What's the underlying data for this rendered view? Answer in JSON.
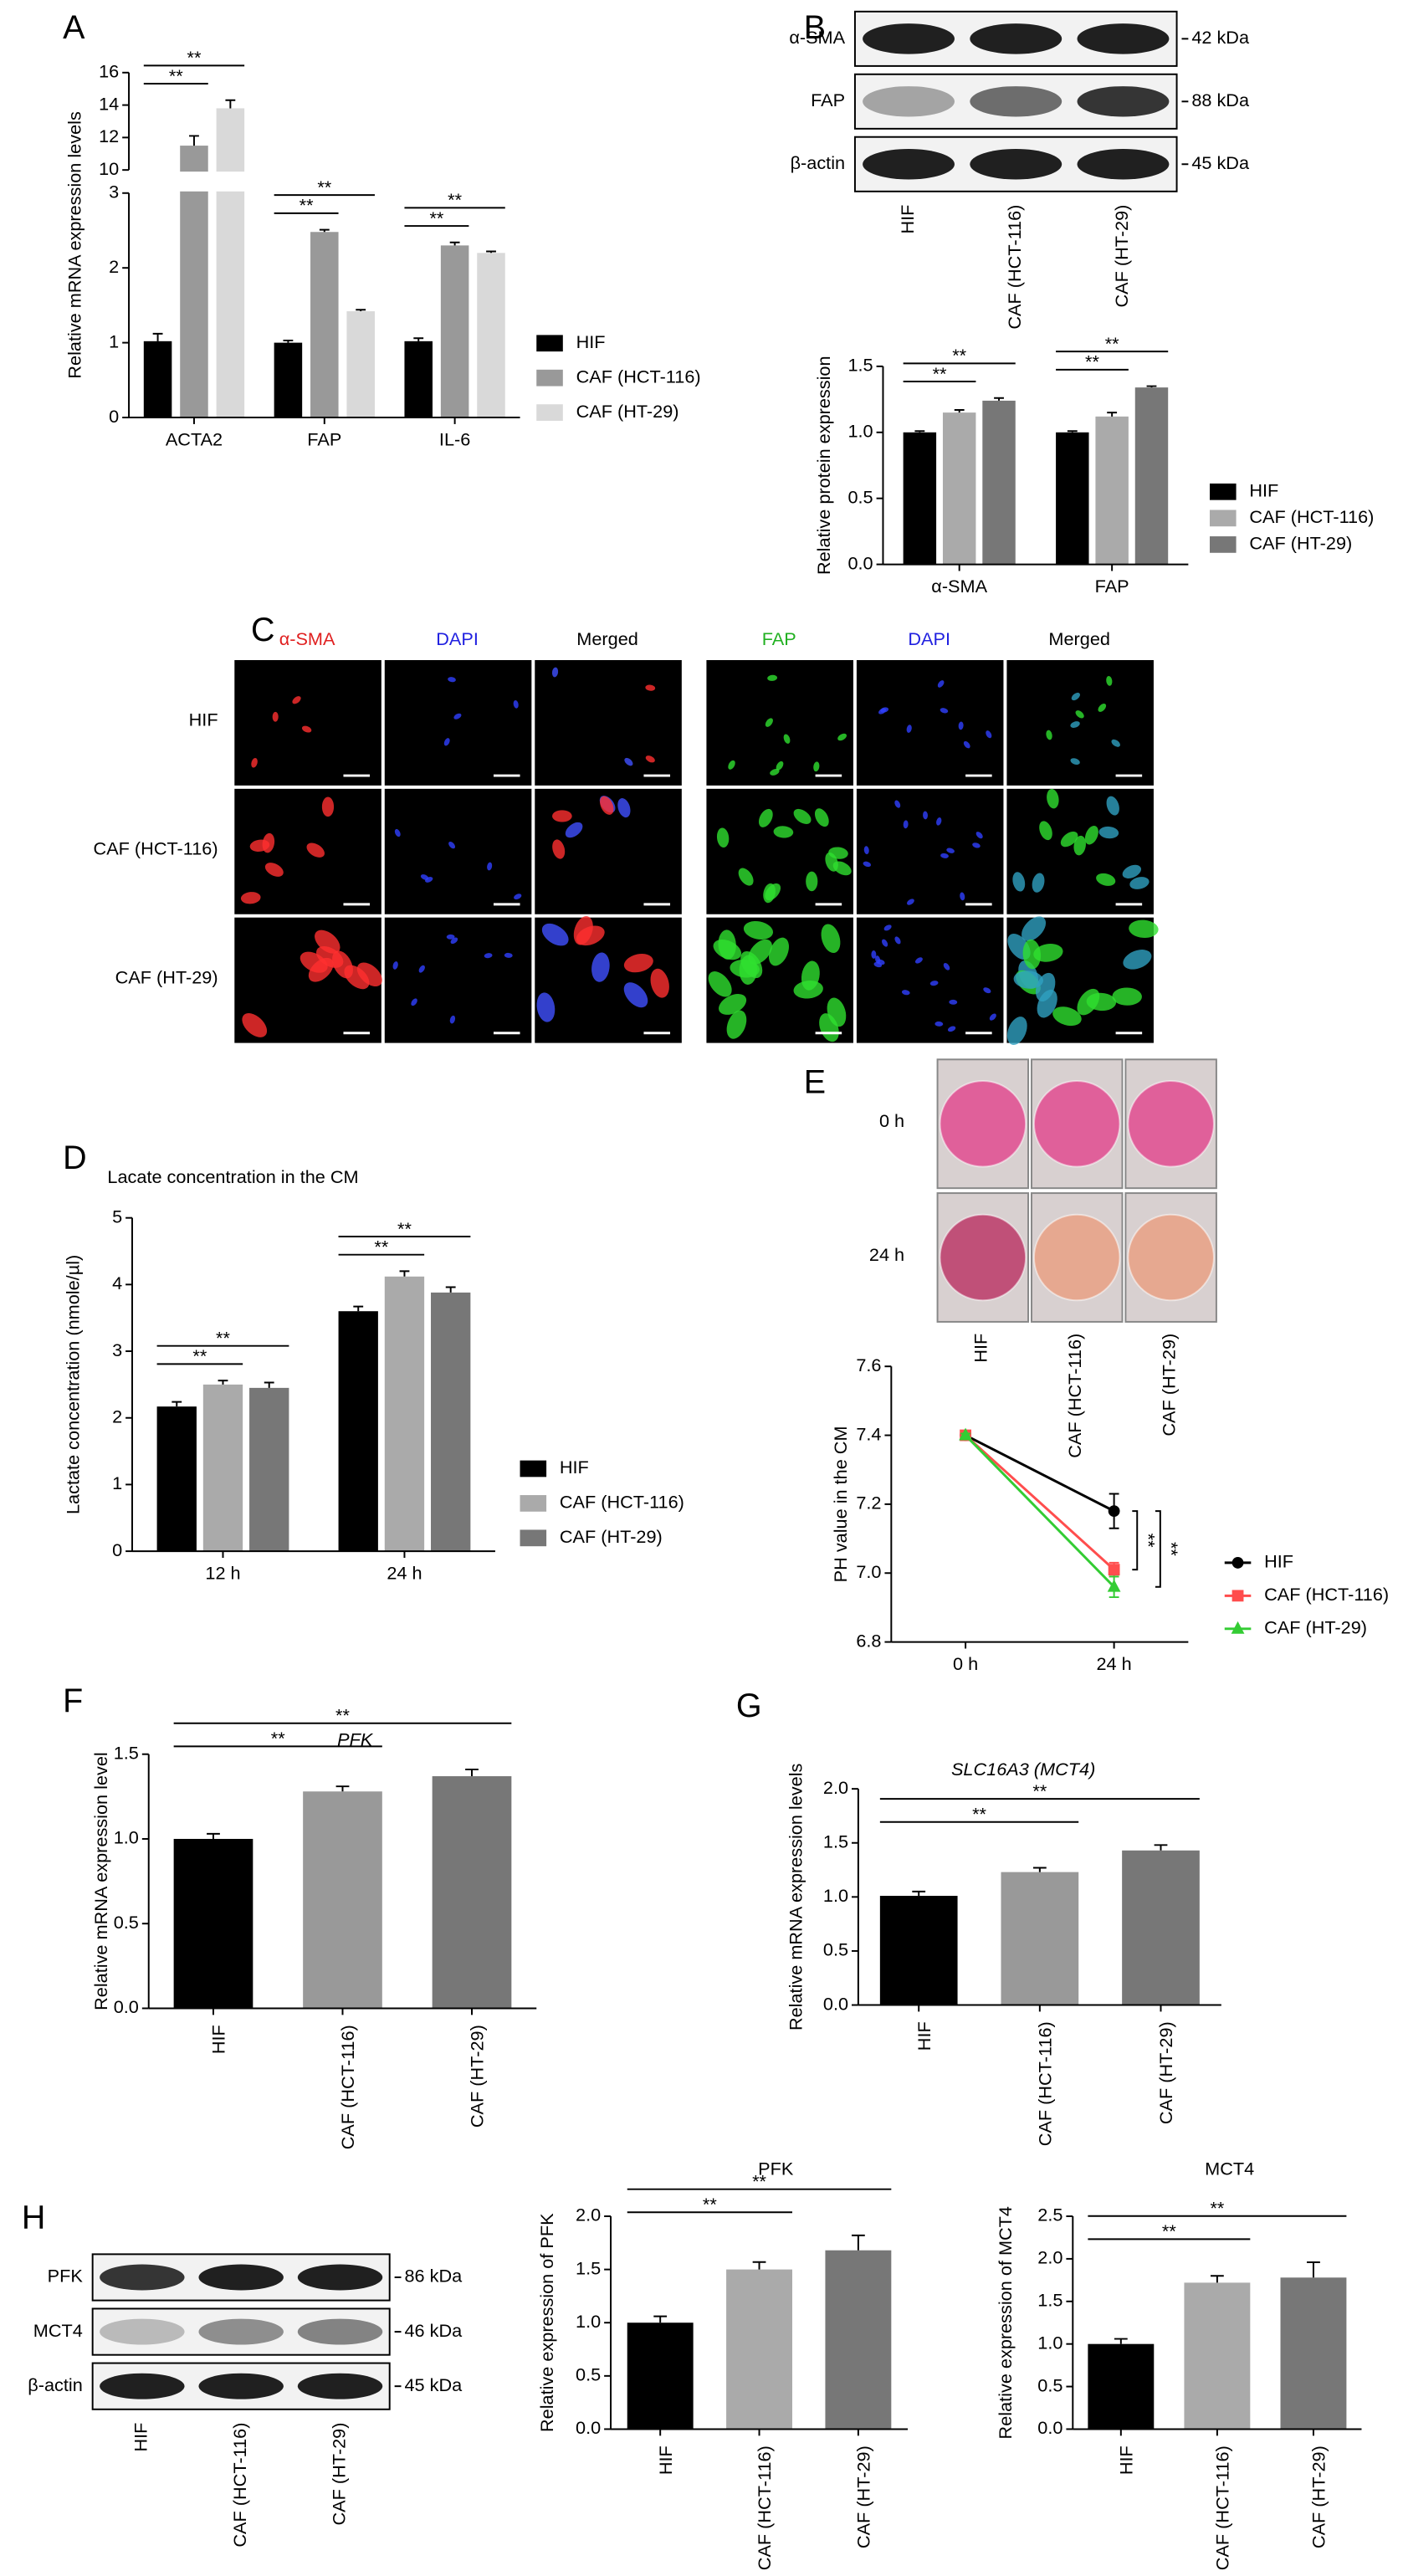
{
  "panel_letters": [
    "A",
    "B",
    "C",
    "D",
    "E",
    "F",
    "G",
    "H"
  ],
  "blot_b": {
    "rows": [
      "α-SMA",
      "FAP",
      "β-actin"
    ],
    "sizes": [
      "42 kDa",
      "88 kDa",
      "45 kDa"
    ],
    "lanes": [
      "HIF",
      "CAF (HCT-116)",
      "CAF (HT-29)"
    ]
  },
  "micro_c": {
    "left_headers": [
      "α-SMA",
      "DAPI",
      "Merged"
    ],
    "right_headers": [
      "FAP",
      "DAPI",
      "Merged"
    ],
    "rows": [
      "HIF",
      "CAF (HCT-116)",
      "CAF (HT-29)"
    ]
  },
  "plates_e": {
    "rows": [
      "0 h",
      "24 h"
    ],
    "lanes": [
      "HIF",
      "CAF (HCT-116)",
      "CAF (HT-29)"
    ]
  },
  "blot_h": {
    "rows": [
      "PFK",
      "MCT4",
      "β-actin"
    ],
    "sizes": [
      "86 kDa",
      "46 kDa",
      "45 kDa"
    ],
    "lanes": [
      "HIF",
      "CAF (HCT-116)",
      "CAF (HT-29)"
    ]
  },
  "chart_data": [
    {
      "type": "bar",
      "ylabel": "Relative mRNA expression levels",
      "categories": [
        "ACTA2",
        "FAP",
        "IL-6"
      ],
      "series": [
        {
          "name": "HIF",
          "color": "#000000",
          "values": [
            1.02,
            1.0,
            1.02
          ],
          "errors": [
            0.1,
            0.03,
            0.04
          ]
        },
        {
          "name": "CAF (HCT-116)",
          "color": "#999999",
          "values": [
            11.5,
            2.48,
            2.3
          ],
          "errors": [
            0.6,
            0.03,
            0.04
          ]
        },
        {
          "name": "CAF (HT-29)",
          "color": "#d9d9d9",
          "values": [
            13.8,
            1.42,
            2.2
          ],
          "errors": [
            0.5,
            0.02,
            0.02
          ]
        }
      ],
      "ylim": [
        0,
        16
      ],
      "yticks": [
        0,
        1,
        2,
        3,
        10,
        12,
        14,
        16
      ],
      "axis_break": [
        3,
        10
      ],
      "significance": [
        {
          "group": 0,
          "pair": [
            0,
            1
          ],
          "label": "**"
        },
        {
          "group": 0,
          "pair": [
            0,
            2
          ],
          "label": "**"
        },
        {
          "group": 1,
          "pair": [
            0,
            1
          ],
          "label": "**"
        },
        {
          "group": 1,
          "pair": [
            0,
            2
          ],
          "label": "**"
        },
        {
          "group": 2,
          "pair": [
            0,
            1
          ],
          "label": "**"
        },
        {
          "group": 2,
          "pair": [
            0,
            2
          ],
          "label": "**"
        }
      ]
    },
    {
      "type": "bar",
      "ylabel": "Relative protein expression",
      "categories": [
        "α-SMA",
        "FAP"
      ],
      "series": [
        {
          "name": "HIF",
          "color": "#000000",
          "values": [
            1.0,
            1.0
          ],
          "errors": [
            0.01,
            0.01
          ]
        },
        {
          "name": "CAF (HCT-116)",
          "color": "#aaaaaa",
          "values": [
            1.15,
            1.12
          ],
          "errors": [
            0.02,
            0.03
          ]
        },
        {
          "name": "CAF (HT-29)",
          "color": "#777777",
          "values": [
            1.24,
            1.34
          ],
          "errors": [
            0.02,
            0.01
          ]
        }
      ],
      "ylim": [
        0,
        1.5
      ],
      "yticks": [
        {
          "value": 0,
          "label": "0.0"
        },
        0.5,
        {
          "value": 1,
          "label": "1.0"
        },
        1.5
      ],
      "significance": [
        {
          "group": 0,
          "pair": [
            0,
            1
          ],
          "label": "**"
        },
        {
          "group": 0,
          "pair": [
            0,
            2
          ],
          "label": "**"
        },
        {
          "group": 1,
          "pair": [
            0,
            1
          ],
          "label": "**"
        },
        {
          "group": 1,
          "pair": [
            0,
            2
          ],
          "label": "**"
        }
      ]
    },
    {
      "type": "bar",
      "title": "Lacate concentration in the CM",
      "ylabel": "Lactate concentration (nmole/µl)",
      "categories": [
        "12 h",
        "24 h"
      ],
      "series": [
        {
          "name": "HIF",
          "color": "#000000",
          "values": [
            2.17,
            3.6
          ],
          "errors": [
            0.07,
            0.07
          ]
        },
        {
          "name": "CAF (HCT-116)",
          "color": "#aaaaaa",
          "values": [
            2.5,
            4.12
          ],
          "errors": [
            0.06,
            0.08
          ]
        },
        {
          "name": "CAF (HT-29)",
          "color": "#777777",
          "values": [
            2.45,
            3.88
          ],
          "errors": [
            0.08,
            0.08
          ]
        }
      ],
      "ylim": [
        0,
        5
      ],
      "yticks": [
        0,
        1,
        2,
        3,
        4,
        5
      ],
      "significance": [
        {
          "group": 0,
          "pair": [
            0,
            1
          ],
          "label": "**"
        },
        {
          "group": 0,
          "pair": [
            0,
            2
          ],
          "label": "**"
        },
        {
          "group": 1,
          "pair": [
            0,
            1
          ],
          "label": "**"
        },
        {
          "group": 1,
          "pair": [
            0,
            2
          ],
          "label": "**"
        }
      ]
    },
    {
      "type": "line",
      "ylabel": "PH value in the CM",
      "categories": [
        "0 h",
        "24 h"
      ],
      "series": [
        {
          "name": "HIF",
          "color": "#000000",
          "marker": "circle",
          "values": [
            7.4,
            7.18
          ],
          "errors": [
            0.005,
            0.05
          ]
        },
        {
          "name": "CAF (HCT-116)",
          "color": "#ff4d4d",
          "marker": "square",
          "values": [
            7.4,
            7.01
          ],
          "errors": [
            0.005,
            0.02
          ]
        },
        {
          "name": "CAF (HT-29)",
          "color": "#33cc33",
          "marker": "triangle",
          "values": [
            7.4,
            6.96
          ],
          "errors": [
            0.005,
            0.03
          ]
        }
      ],
      "ylim": [
        6.8,
        7.6
      ],
      "yticks": [
        6.8,
        {
          "value": 7,
          "label": "7.0"
        },
        7.2,
        7.4,
        7.6
      ],
      "significance": [
        {
          "group": 1,
          "pair": [
            0,
            1
          ],
          "label": "**"
        },
        {
          "group": 1,
          "pair": [
            0,
            2
          ],
          "label": "**"
        }
      ]
    },
    {
      "type": "bar",
      "title": "PFK",
      "title_style": "italic",
      "ylabel": "Relative mRNA expression level",
      "categories": [
        "HIF",
        "CAF (HCT-116)",
        "CAF (HT-29)"
      ],
      "values": [
        1.0,
        1.28,
        1.37
      ],
      "errors": [
        0.03,
        0.03,
        0.04
      ],
      "colors": [
        "#000000",
        "#999999",
        "#777777"
      ],
      "ylim": [
        0,
        1.5
      ],
      "yticks": [
        {
          "value": 0,
          "label": "0.0"
        },
        0.5,
        {
          "value": 1,
          "label": "1.0"
        },
        1.5
      ],
      "significance": [
        {
          "pair": [
            0,
            1
          ],
          "label": "**"
        },
        {
          "pair": [
            0,
            2
          ],
          "label": "**"
        }
      ]
    },
    {
      "type": "bar",
      "title": "SLC16A3 (MCT4)",
      "title_style": "italic",
      "ylabel": "Relative mRNA expression levels",
      "categories": [
        "HIF",
        "CAF (HCT-116)",
        "CAF (HT-29)"
      ],
      "values": [
        1.01,
        1.23,
        1.43
      ],
      "errors": [
        0.04,
        0.04,
        0.05
      ],
      "colors": [
        "#000000",
        "#999999",
        "#777777"
      ],
      "ylim": [
        0,
        2
      ],
      "yticks": [
        {
          "value": 0,
          "label": "0.0"
        },
        0.5,
        {
          "value": 1,
          "label": "1.0"
        },
        1.5,
        {
          "value": 2,
          "label": "2.0"
        }
      ],
      "significance": [
        {
          "pair": [
            0,
            1
          ],
          "label": "**"
        },
        {
          "pair": [
            0,
            2
          ],
          "label": "**"
        }
      ]
    },
    {
      "type": "bar",
      "title": "PFK",
      "ylabel": "Relative expression of PFK",
      "categories": [
        "HIF",
        "CAF (HCT-116)",
        "CAF (HT-29)"
      ],
      "values": [
        1.0,
        1.5,
        1.68
      ],
      "errors": [
        0.06,
        0.07,
        0.14
      ],
      "colors": [
        "#000000",
        "#aaaaaa",
        "#777777"
      ],
      "ylim": [
        0,
        2
      ],
      "yticks": [
        {
          "value": 0,
          "label": "0.0"
        },
        0.5,
        {
          "value": 1,
          "label": "1.0"
        },
        1.5,
        {
          "value": 2,
          "label": "2.0"
        }
      ],
      "significance": [
        {
          "pair": [
            0,
            1
          ],
          "label": "**"
        },
        {
          "pair": [
            0,
            2
          ],
          "label": "**"
        }
      ]
    },
    {
      "type": "bar",
      "title": "MCT4",
      "ylabel": "Relative expression of MCT4",
      "categories": [
        "HIF",
        "CAF (HCT-116)",
        "CAF (HT-29)"
      ],
      "values": [
        1.0,
        1.72,
        1.78
      ],
      "errors": [
        0.06,
        0.08,
        0.18
      ],
      "colors": [
        "#000000",
        "#aaaaaa",
        "#777777"
      ],
      "ylim": [
        0,
        2.5
      ],
      "yticks": [
        {
          "value": 0,
          "label": "0.0"
        },
        0.5,
        {
          "value": 1,
          "label": "1.0"
        },
        1.5,
        {
          "value": 2,
          "label": "2.0"
        },
        2.5
      ],
      "significance": [
        {
          "pair": [
            0,
            1
          ],
          "label": "**"
        },
        {
          "pair": [
            0,
            2
          ],
          "label": "**"
        }
      ]
    }
  ]
}
